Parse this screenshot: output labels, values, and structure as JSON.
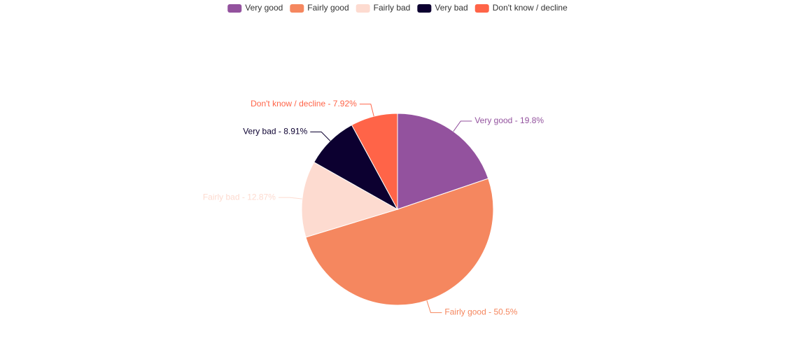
{
  "chart_data": {
    "type": "pie",
    "categories": [
      "Very good",
      "Fairly good",
      "Fairly bad",
      "Very bad",
      "Don't know / decline"
    ],
    "values": [
      19.8,
      50.5,
      12.87,
      8.91,
      7.92
    ],
    "value_labels": [
      "Very good - 19.8%",
      "Fairly good - 50.5%",
      "Fairly bad - 12.87%",
      "Very bad - 8.91%",
      "Don't know / decline - 7.92%"
    ],
    "colors": [
      "#93529e",
      "#f5875f",
      "#fddbd0",
      "#0c0030",
      "#ff6448"
    ],
    "legend": "top"
  }
}
